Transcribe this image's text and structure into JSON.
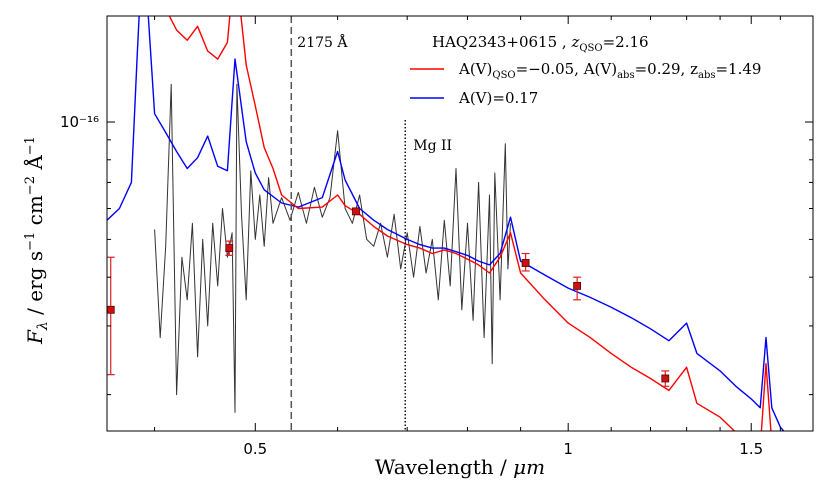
{
  "chart_data": {
    "type": "line",
    "title": "HAQ2343+0615 , z_QSO=2.16",
    "xlabel": "Wavelength  /  μm",
    "ylabel": "F_λ  /  erg s^-1 cm^-2 Å^-1",
    "xscale": "log",
    "yscale": "log",
    "xlim": [
      0.36,
      1.72
    ],
    "x_ticks": [
      {
        "value": 0.5,
        "label": "0.5"
      },
      {
        "value": 1.0,
        "label": "1"
      },
      {
        "value": 1.5,
        "label": "1.5"
      }
    ],
    "y_ticks": [
      {
        "value": 1e-16,
        "label": "10⁻¹⁶"
      }
    ],
    "grid": false,
    "legend_position": "top-right",
    "legend": {
      "title": "HAQ2343+0615 , z_QSO=2.16",
      "entries": [
        {
          "label": "A(V)_QSO=−0.05, A(V)_abs=0.29, z_abs=1.49",
          "color": "#ff0000"
        },
        {
          "label": "A(V)=0.17",
          "color": "#0000ff"
        }
      ]
    },
    "annotations": [
      {
        "text": "2175 Å",
        "x": 0.5415,
        "style": "dashed"
      },
      {
        "text": "Mg II",
        "x": 0.697,
        "style": "dotted"
      }
    ],
    "series": [
      {
        "name": "A(V)_QSO=−0.05, A(V)_abs=0.29, z_abs=1.49",
        "color": "#ff0000",
        "points": [
          [
            0.36,
            2.3e-16
          ],
          [
            0.37,
            2.05e-16
          ],
          [
            0.38,
            2.12e-16
          ],
          [
            0.39,
            2.9e-16
          ],
          [
            0.4,
            2.4e-16
          ],
          [
            0.41,
            1.95e-16
          ],
          [
            0.42,
            1.72e-16
          ],
          [
            0.43,
            1.62e-16
          ],
          [
            0.44,
            1.76e-16
          ],
          [
            0.45,
            1.52e-16
          ],
          [
            0.46,
            1.45e-16
          ],
          [
            0.47,
            1.6e-16
          ],
          [
            0.478,
            2.6e-16
          ],
          [
            0.49,
            1.4e-16
          ],
          [
            0.5,
            1.1e-16
          ],
          [
            0.51,
            8.6e-17
          ],
          [
            0.52,
            7.6e-17
          ],
          [
            0.53,
            6.5e-17
          ],
          [
            0.55,
            6e-17
          ],
          [
            0.58,
            6.05e-17
          ],
          [
            0.6,
            6.5e-17
          ],
          [
            0.61,
            6.1e-17
          ],
          [
            0.63,
            5.8e-17
          ],
          [
            0.65,
            5.4e-17
          ],
          [
            0.67,
            5.1e-17
          ],
          [
            0.7,
            4.85e-17
          ],
          [
            0.72,
            4.75e-17
          ],
          [
            0.74,
            4.6e-17
          ],
          [
            0.76,
            4.7e-17
          ],
          [
            0.78,
            4.6e-17
          ],
          [
            0.8,
            4.45e-17
          ],
          [
            0.82,
            4.3e-17
          ],
          [
            0.84,
            4.1e-17
          ],
          [
            0.86,
            4.5e-17
          ],
          [
            0.88,
            5.2e-17
          ],
          [
            0.9,
            4.1e-17
          ],
          [
            0.95,
            3.5e-17
          ],
          [
            1.0,
            3.05e-17
          ],
          [
            1.05,
            2.8e-17
          ],
          [
            1.1,
            2.55e-17
          ],
          [
            1.15,
            2.35e-17
          ],
          [
            1.2,
            2.2e-17
          ],
          [
            1.25,
            2.05e-17
          ],
          [
            1.3,
            2.35e-17
          ],
          [
            1.33,
            1.9e-17
          ],
          [
            1.4,
            1.75e-17
          ],
          [
            1.45,
            1.6e-17
          ],
          [
            1.5,
            1.5e-17
          ],
          [
            1.53,
            1.45e-17
          ],
          [
            1.55,
            2.4e-17
          ],
          [
            1.57,
            1.5e-17
          ],
          [
            1.6,
            1.45e-17
          ],
          [
            1.65,
            1.33e-17
          ],
          [
            1.72,
            1.28e-17
          ]
        ]
      },
      {
        "name": "A(V)=0.17",
        "color": "#0000ff",
        "points": [
          [
            0.36,
            5.6e-17
          ],
          [
            0.37,
            6e-17
          ],
          [
            0.38,
            7e-17
          ],
          [
            0.385,
            1.5e-16
          ],
          [
            0.39,
            3e-16
          ],
          [
            0.4,
            1.05e-16
          ],
          [
            0.41,
            9.4e-17
          ],
          [
            0.42,
            8.4e-17
          ],
          [
            0.43,
            7.6e-17
          ],
          [
            0.44,
            8.1e-17
          ],
          [
            0.45,
            9.2e-17
          ],
          [
            0.46,
            7.7e-17
          ],
          [
            0.47,
            7.5e-17
          ],
          [
            0.478,
            1.45e-16
          ],
          [
            0.49,
            8.9e-17
          ],
          [
            0.5,
            7.4e-17
          ],
          [
            0.51,
            6.7e-17
          ],
          [
            0.53,
            6.2e-17
          ],
          [
            0.55,
            6.05e-17
          ],
          [
            0.58,
            6.4e-17
          ],
          [
            0.6,
            8.4e-17
          ],
          [
            0.61,
            7.1e-17
          ],
          [
            0.63,
            6e-17
          ],
          [
            0.65,
            5.6e-17
          ],
          [
            0.67,
            5.3e-17
          ],
          [
            0.7,
            5e-17
          ],
          [
            0.72,
            4.85e-17
          ],
          [
            0.74,
            4.75e-17
          ],
          [
            0.76,
            4.75e-17
          ],
          [
            0.78,
            4.65e-17
          ],
          [
            0.8,
            4.55e-17
          ],
          [
            0.82,
            4.4e-17
          ],
          [
            0.84,
            4.3e-17
          ],
          [
            0.86,
            4.6e-17
          ],
          [
            0.88,
            5.7e-17
          ],
          [
            0.9,
            4.4e-17
          ],
          [
            0.95,
            4.05e-17
          ],
          [
            1.0,
            3.75e-17
          ],
          [
            1.05,
            3.55e-17
          ],
          [
            1.1,
            3.35e-17
          ],
          [
            1.15,
            3.15e-17
          ],
          [
            1.2,
            2.95e-17
          ],
          [
            1.25,
            2.75e-17
          ],
          [
            1.3,
            3.05e-17
          ],
          [
            1.33,
            2.55e-17
          ],
          [
            1.4,
            2.3e-17
          ],
          [
            1.45,
            2.1e-17
          ],
          [
            1.5,
            1.95e-17
          ],
          [
            1.53,
            1.85e-17
          ],
          [
            1.55,
            2.8e-17
          ],
          [
            1.57,
            1.85e-17
          ],
          [
            1.6,
            1.65e-17
          ],
          [
            1.65,
            1.5e-17
          ],
          [
            1.72,
            1.35e-17
          ]
        ]
      },
      {
        "name": "",
        "color": "#333333",
        "points": [
          [
            0.4,
            5.3e-17
          ],
          [
            0.405,
            2.8e-17
          ],
          [
            0.41,
            4.8e-17
          ],
          [
            0.415,
            1.25e-16
          ],
          [
            0.42,
            2e-17
          ],
          [
            0.425,
            4.5e-17
          ],
          [
            0.43,
            3.5e-17
          ],
          [
            0.435,
            5.5e-17
          ],
          [
            0.44,
            2.5e-17
          ],
          [
            0.445,
            5e-17
          ],
          [
            0.45,
            3e-17
          ],
          [
            0.455,
            5.5e-17
          ],
          [
            0.46,
            3.8e-17
          ],
          [
            0.465,
            6e-17
          ],
          [
            0.47,
            4.5e-17
          ],
          [
            0.475,
            5.2e-17
          ],
          [
            0.478,
            1.8e-17
          ],
          [
            0.48,
            1.25e-16
          ],
          [
            0.485,
            5.8e-17
          ],
          [
            0.49,
            3.5e-17
          ],
          [
            0.495,
            7.5e-17
          ],
          [
            0.5,
            5e-17
          ],
          [
            0.505,
            6.5e-17
          ],
          [
            0.51,
            4.8e-17
          ],
          [
            0.515,
            7.2e-17
          ],
          [
            0.52,
            5.5e-17
          ],
          [
            0.53,
            6.4e-17
          ],
          [
            0.54,
            5.6e-17
          ],
          [
            0.55,
            6.6e-17
          ],
          [
            0.56,
            5.5e-17
          ],
          [
            0.57,
            6.8e-17
          ],
          [
            0.58,
            5.7e-17
          ],
          [
            0.59,
            6.4e-17
          ],
          [
            0.6,
            9.5e-17
          ],
          [
            0.61,
            6e-17
          ],
          [
            0.62,
            5.5e-17
          ],
          [
            0.63,
            6.5e-17
          ],
          [
            0.64,
            5e-17
          ],
          [
            0.65,
            4.8e-17
          ],
          [
            0.66,
            5.5e-17
          ],
          [
            0.67,
            4.5e-17
          ],
          [
            0.68,
            5.8e-17
          ],
          [
            0.69,
            4.2e-17
          ],
          [
            0.7,
            5.2e-17
          ],
          [
            0.71,
            4e-17
          ],
          [
            0.72,
            5.4e-17
          ],
          [
            0.73,
            4.1e-17
          ],
          [
            0.74,
            5e-17
          ],
          [
            0.75,
            3.5e-17
          ],
          [
            0.76,
            5.6e-17
          ],
          [
            0.77,
            3.8e-17
          ],
          [
            0.78,
            7.6e-17
          ],
          [
            0.79,
            3.3e-17
          ],
          [
            0.8,
            5.5e-17
          ],
          [
            0.81,
            3.1e-17
          ],
          [
            0.82,
            7e-17
          ],
          [
            0.83,
            2.8e-17
          ],
          [
            0.84,
            6.5e-17
          ],
          [
            0.845,
            2.4e-17
          ],
          [
            0.85,
            7.4e-17
          ],
          [
            0.86,
            3.5e-17
          ],
          [
            0.87,
            8.8e-17
          ],
          [
            0.875,
            4.2e-17
          ],
          [
            0.88,
            5.5e-17
          ]
        ]
      }
    ],
    "photometry": [
      {
        "x": 0.363,
        "y": 3.3e-17,
        "y_low": 2.25e-17,
        "y_high": 4.5e-17
      },
      {
        "x": 0.472,
        "y": 4.75e-17,
        "y_low": 4.55e-17,
        "y_high": 4.95e-17
      },
      {
        "x": 0.625,
        "y": 5.9e-17,
        "y_low": 5.8e-17,
        "y_high": 6e-17
      },
      {
        "x": 0.91,
        "y": 4.35e-17,
        "y_low": 4.15e-17,
        "y_high": 4.6e-17
      },
      {
        "x": 1.02,
        "y": 3.8e-17,
        "y_low": 3.5e-17,
        "y_high": 4e-17
      },
      {
        "x": 1.24,
        "y": 2.2e-17,
        "y_low": 2.1e-17,
        "y_high": 2.3e-17
      },
      {
        "x": 1.67,
        "y": 1.38e-17,
        "y_low": 1.33e-17,
        "y_high": 1.43e-17
      }
    ]
  }
}
